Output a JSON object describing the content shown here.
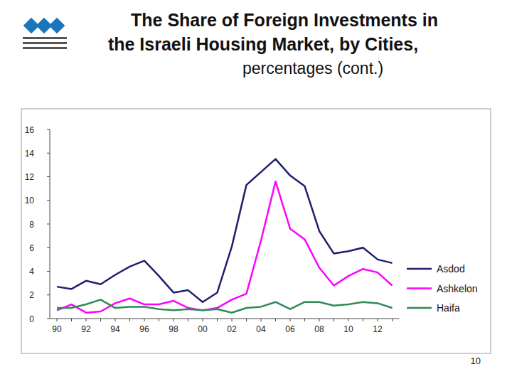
{
  "chart_data": {
    "type": "line",
    "title": "The Share of Foreign Investments in the Israeli Housing Market, by Cities,",
    "subtitle": "percentages (cont.)",
    "categories": [
      "90",
      null,
      "92",
      null,
      "94",
      null,
      "96",
      null,
      "98",
      null,
      "00",
      null,
      "02",
      null,
      "04",
      null,
      "06",
      null,
      "08",
      null,
      "10",
      null,
      "12",
      null
    ],
    "series": [
      {
        "name": "Asdod",
        "color": "#1f1f6e",
        "values": [
          2.7,
          2.5,
          3.2,
          2.9,
          3.7,
          4.4,
          4.9,
          3.6,
          2.2,
          2.4,
          1.4,
          2.2,
          6.1,
          11.3,
          12.4,
          13.5,
          12.1,
          11.2,
          7.4,
          5.5,
          5.7,
          6.0,
          5.0,
          4.7
        ]
      },
      {
        "name": "Ashkelon",
        "color": "#ff00ff",
        "values": [
          0.7,
          1.2,
          0.5,
          0.6,
          1.3,
          1.7,
          1.2,
          1.2,
          1.5,
          0.9,
          0.7,
          0.9,
          1.6,
          2.1,
          6.6,
          11.6,
          7.6,
          6.7,
          4.3,
          2.8,
          3.6,
          4.2,
          3.9,
          2.8
        ]
      },
      {
        "name": "Haifa",
        "color": "#2e8b57",
        "values": [
          0.9,
          0.9,
          1.2,
          1.6,
          0.9,
          1.0,
          1.0,
          0.8,
          0.7,
          0.8,
          0.7,
          0.8,
          0.5,
          0.9,
          1.0,
          1.4,
          0.8,
          1.4,
          1.4,
          1.1,
          1.2,
          1.4,
          1.3,
          0.9
        ]
      }
    ],
    "ylim": [
      0,
      16
    ],
    "yticks": [
      0,
      2,
      4,
      6,
      8,
      10,
      12,
      14,
      16
    ],
    "grid": false,
    "legend": "right"
  },
  "page_number": "10"
}
